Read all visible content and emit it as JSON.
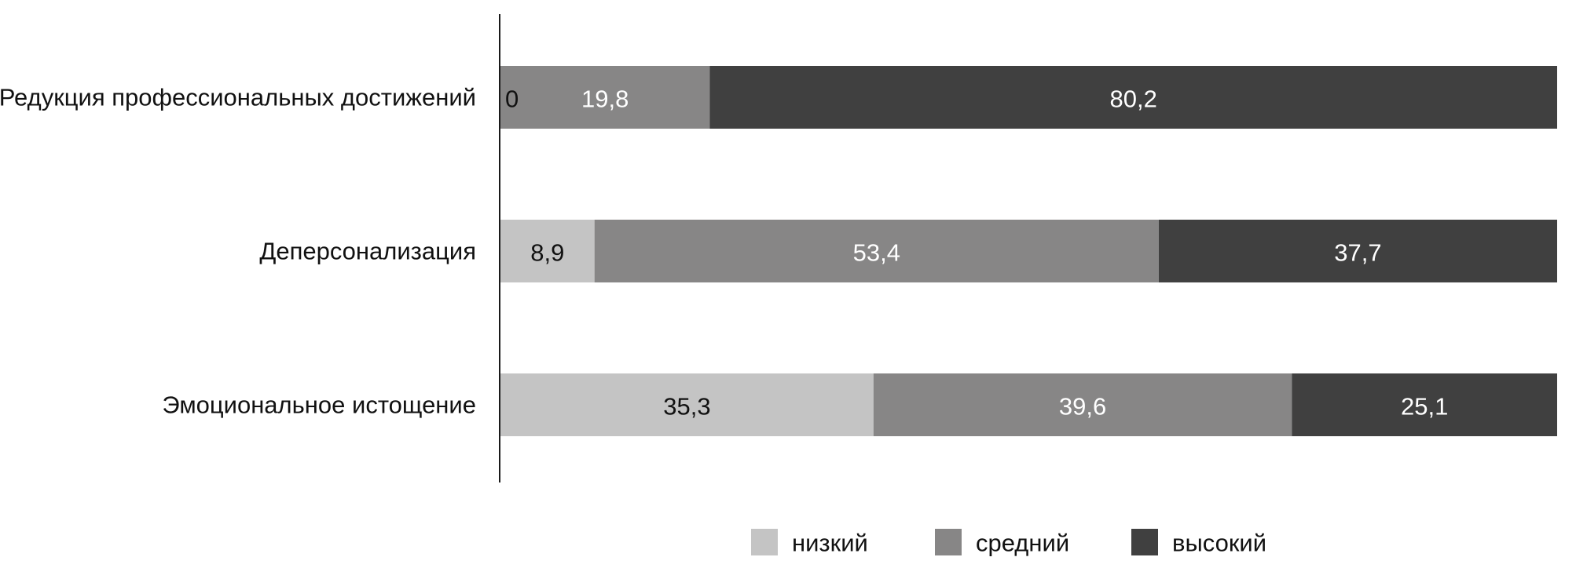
{
  "chart_data": {
    "type": "bar",
    "orientation": "horizontal",
    "stacked": true,
    "title": "",
    "xlabel": "",
    "ylabel": "",
    "xlim": [
      0,
      100
    ],
    "grid": false,
    "legend_position": "bottom",
    "categories": [
      "Редукция профессиональных достижений",
      "Деперсонализация",
      "Эмоциональное истощение"
    ],
    "series": [
      {
        "name": "низкий",
        "color": "#c4c4c4",
        "label_color": "#111111",
        "values": [
          0,
          8.9,
          35.3
        ],
        "labels": [
          "0",
          "8,9",
          "35,3"
        ]
      },
      {
        "name": "средний",
        "color": "#878686",
        "label_color": "#ffffff",
        "values": [
          19.8,
          53.4,
          39.6
        ],
        "labels": [
          "19,8",
          "53,4",
          "39,6"
        ]
      },
      {
        "name": "высокий",
        "color": "#404040",
        "label_color": "#ffffff",
        "values": [
          80.2,
          37.7,
          25.1
        ],
        "labels": [
          "80,2",
          "37,7",
          "25,1"
        ]
      }
    ]
  }
}
